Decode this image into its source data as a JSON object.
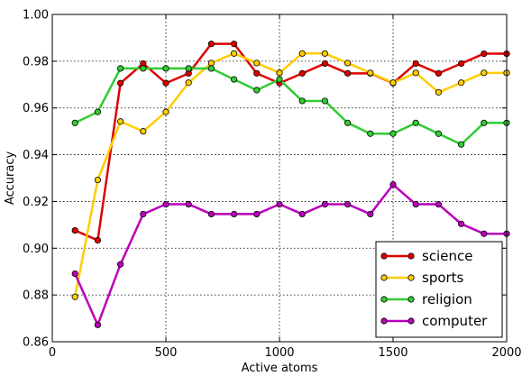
{
  "chart_data": {
    "type": "line",
    "title": "",
    "xlabel": "Active atoms",
    "ylabel": "Accuracy",
    "xlim": [
      0,
      2000
    ],
    "ylim": [
      0.86,
      1.0
    ],
    "xticks": [
      0,
      500,
      1000,
      1500,
      2000
    ],
    "xtick_labels": [
      "0",
      "500",
      "1000",
      "1500",
      "2000"
    ],
    "yticks": [
      0.86,
      0.88,
      0.9,
      0.92,
      0.94,
      0.96,
      0.98,
      1.0
    ],
    "ytick_labels": [
      "0.86",
      "0.88",
      "0.90",
      "0.92",
      "0.94",
      "0.96",
      "0.98",
      "1.00"
    ],
    "grid": true,
    "legend_position": "bottom-right",
    "x": [
      100,
      200,
      300,
      400,
      500,
      600,
      700,
      800,
      900,
      1000,
      1100,
      1200,
      1300,
      1400,
      1500,
      1600,
      1700,
      1800,
      1900,
      2000
    ],
    "series": [
      {
        "name": "science",
        "color": "#dd0000",
        "values": [
          0.9076,
          0.9034,
          0.9706,
          0.979,
          0.9706,
          0.9748,
          0.9874,
          0.9874,
          0.9748,
          0.9706,
          0.9748,
          0.979,
          0.9748,
          0.9748,
          0.9706,
          0.979,
          0.9748,
          0.979,
          0.9832,
          0.9832
        ]
      },
      {
        "name": "sports",
        "color": "#ffcc00",
        "values": [
          0.8792,
          0.9292,
          0.9542,
          0.95,
          0.9583,
          0.9708,
          0.9792,
          0.9833,
          0.9792,
          0.975,
          0.9833,
          0.9833,
          0.9792,
          0.975,
          0.9708,
          0.975,
          0.9667,
          0.9708,
          0.975,
          0.975
        ]
      },
      {
        "name": "religion",
        "color": "#33cc33",
        "values": [
          0.9536,
          0.9583,
          0.9769,
          0.9769,
          0.9769,
          0.9769,
          0.9769,
          0.9722,
          0.9676,
          0.9722,
          0.963,
          0.963,
          0.9536,
          0.949,
          0.949,
          0.9536,
          0.949,
          0.9444,
          0.9536,
          0.9536
        ]
      },
      {
        "name": "computer",
        "color": "#bb00bb",
        "values": [
          0.8891,
          0.8672,
          0.8931,
          0.9146,
          0.9188,
          0.9188,
          0.9146,
          0.9146,
          0.9146,
          0.9188,
          0.9146,
          0.9188,
          0.9188,
          0.9146,
          0.9272,
          0.9188,
          0.9188,
          0.9104,
          0.9062,
          0.9062
        ]
      }
    ]
  }
}
